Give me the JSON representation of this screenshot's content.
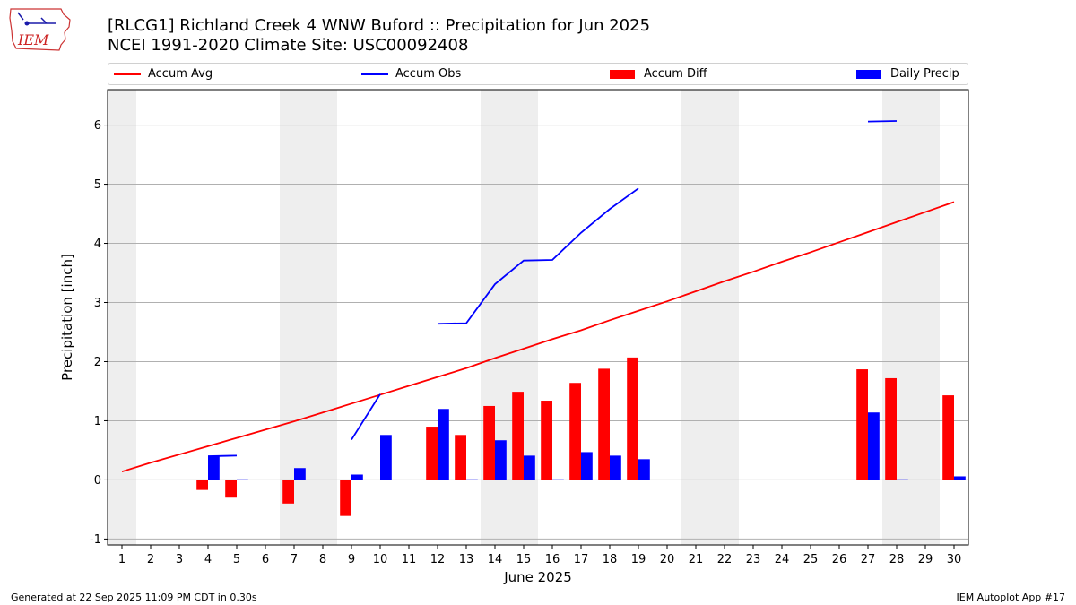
{
  "header": {
    "title_line1": "[RLCG1] Richland Creek 4 WNW Buford :: Precipitation for Jun 2025",
    "title_line2": "NCEI 1991-2020 Climate Site: USC00092408",
    "logo_text": "IEM"
  },
  "footer": {
    "generated": "Generated at 22 Sep 2025 11:09 PM CDT in 0.30s",
    "app": "IEM Autoplot App #17"
  },
  "legend": {
    "placement": "top",
    "items": [
      {
        "label": "Accum Avg",
        "kind": "line",
        "color": "#ff0000"
      },
      {
        "label": "Accum Obs",
        "kind": "line",
        "color": "#0000ff"
      },
      {
        "label": "Accum Diff",
        "kind": "bar",
        "color": "#ff0000"
      },
      {
        "label": "Daily Precip",
        "kind": "bar",
        "color": "#0000ff"
      }
    ]
  },
  "chart_data": {
    "type": "bar",
    "xlabel": "June 2025",
    "ylabel": "Precipitation [inch]",
    "xlim": [
      0.5,
      30.5
    ],
    "ylim": [
      -1.1,
      6.6
    ],
    "yticks": [
      -1,
      0,
      1,
      2,
      3,
      4,
      5,
      6
    ],
    "xticks": [
      1,
      2,
      3,
      4,
      5,
      6,
      7,
      8,
      9,
      10,
      11,
      12,
      13,
      14,
      15,
      16,
      17,
      18,
      19,
      20,
      21,
      22,
      23,
      24,
      25,
      26,
      27,
      28,
      29,
      30
    ],
    "grid": "horizontal",
    "weekend_shading": [
      [
        0.5,
        1.5
      ],
      [
        6.5,
        8.5
      ],
      [
        13.5,
        15.5
      ],
      [
        20.5,
        22.5
      ],
      [
        27.5,
        29.5
      ]
    ],
    "weekend_color": "#eeeeee",
    "accum_avg": {
      "name": "Accum Avg",
      "color": "#ff0000",
      "x": [
        1,
        2,
        3,
        4,
        5,
        6,
        7,
        8,
        9,
        10,
        11,
        12,
        13,
        14,
        15,
        16,
        17,
        18,
        19,
        20,
        21,
        22,
        23,
        24,
        25,
        26,
        27,
        28,
        29,
        30
      ],
      "y": [
        0.14,
        0.29,
        0.43,
        0.57,
        0.71,
        0.85,
        0.99,
        1.14,
        1.29,
        1.44,
        1.59,
        1.74,
        1.89,
        2.06,
        2.22,
        2.38,
        2.53,
        2.7,
        2.86,
        3.02,
        3.19,
        3.36,
        3.52,
        3.69,
        3.85,
        4.02,
        4.19,
        4.36,
        4.53,
        4.7
      ]
    },
    "accum_obs": {
      "name": "Accum Obs",
      "color": "#0000ff",
      "segments": [
        {
          "x": [
            4,
            5
          ],
          "y": [
            0.4,
            0.41
          ]
        },
        {
          "x": [
            9,
            10
          ],
          "y": [
            0.68,
            1.45
          ]
        },
        {
          "x": [
            12,
            13,
            14,
            15,
            16,
            17,
            18,
            19
          ],
          "y": [
            2.64,
            2.65,
            3.31,
            3.71,
            3.72,
            4.18,
            4.58,
            4.93
          ]
        },
        {
          "x": [
            27,
            28
          ],
          "y": [
            6.06,
            6.07
          ]
        }
      ]
    },
    "accum_diff": {
      "name": "Accum Diff",
      "color": "#ff0000",
      "x": [
        4,
        5,
        7,
        9,
        12,
        13,
        14,
        15,
        16,
        17,
        18,
        19,
        27,
        28,
        30
      ],
      "y": [
        -0.17,
        -0.3,
        -0.4,
        -0.61,
        0.9,
        0.76,
        1.25,
        1.49,
        1.34,
        1.64,
        1.88,
        2.07,
        1.87,
        1.72,
        1.43
      ]
    },
    "daily_precip": {
      "name": "Daily Precip",
      "color": "#0000ff",
      "x": [
        4,
        5,
        7,
        9,
        10,
        12,
        13,
        14,
        15,
        16,
        17,
        18,
        19,
        27,
        28,
        30
      ],
      "y": [
        0.4,
        0.01,
        0.2,
        0.09,
        0.76,
        1.2,
        0.01,
        0.67,
        0.41,
        0.01,
        0.47,
        0.41,
        0.35,
        1.14,
        0.01,
        0.06
      ]
    }
  }
}
